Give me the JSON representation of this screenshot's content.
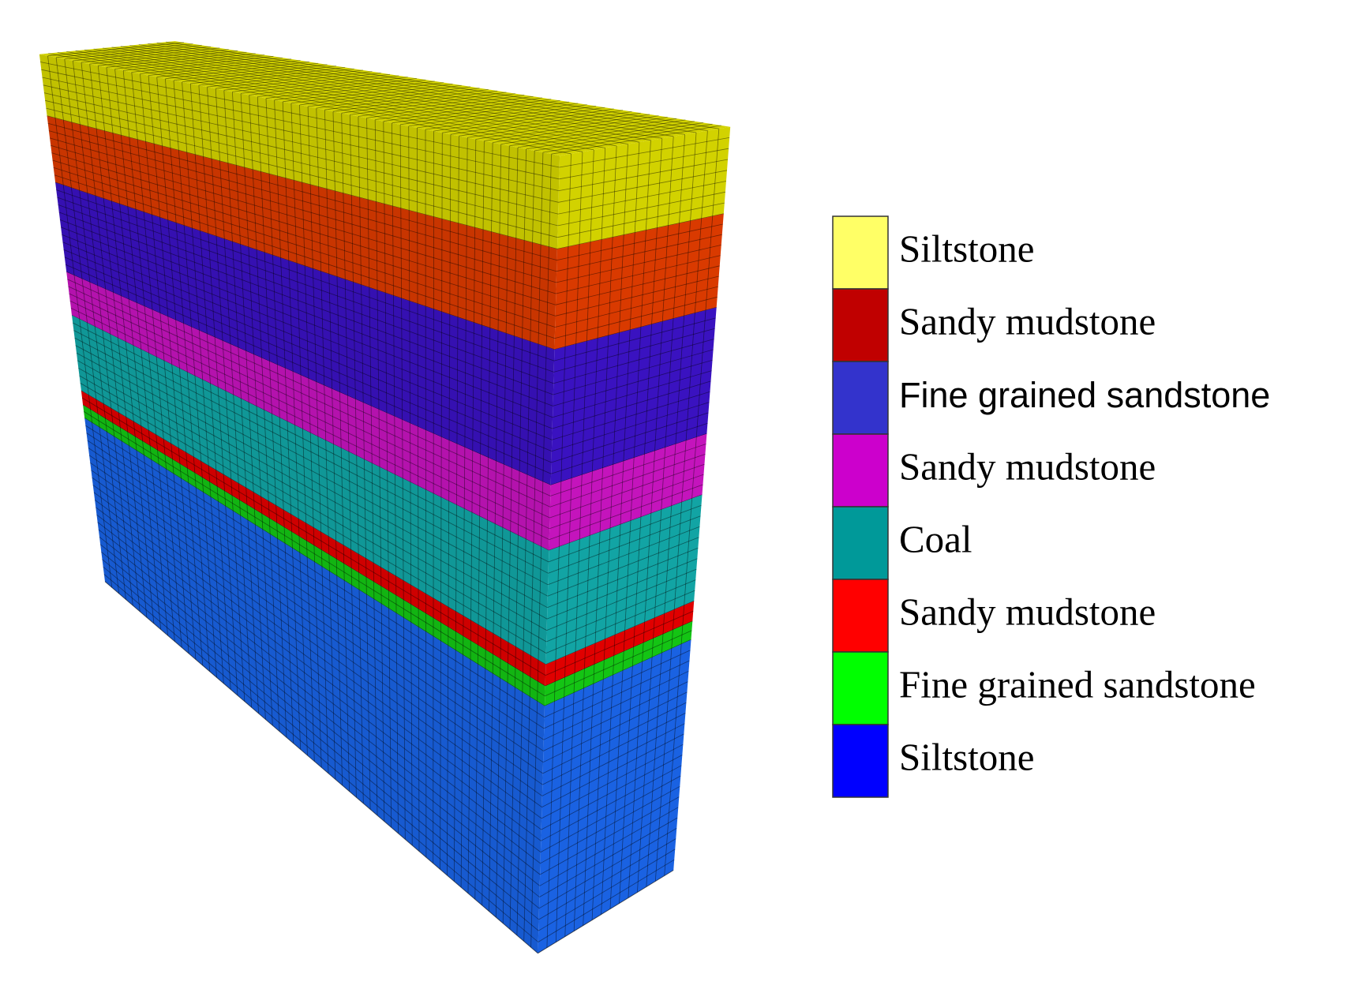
{
  "legend": {
    "items": [
      {
        "label": "Siltstone",
        "color": "#ffff66",
        "mesh_color": "#d2d200"
      },
      {
        "label": "Sandy mudstone",
        "color": "#c00000",
        "mesh_color": "#d93a00"
      },
      {
        "label": "Fine grained sandstone",
        "color": "#3333cc",
        "mesh_color": "#3a12c0"
      },
      {
        "label": "Sandy mudstone",
        "color": "#cc00cc",
        "mesh_color": "#c414bc"
      },
      {
        "label": "Coal",
        "color": "#009999",
        "mesh_color": "#12a4a4"
      },
      {
        "label": "Sandy mudstone",
        "color": "#ff0000",
        "mesh_color": "#e00000"
      },
      {
        "label": "Fine grained sandstone",
        "color": "#00ff00",
        "mesh_color": "#14c414"
      },
      {
        "label": "Siltstone",
        "color": "#0000ff",
        "mesh_color": "#1a62e2"
      }
    ]
  }
}
